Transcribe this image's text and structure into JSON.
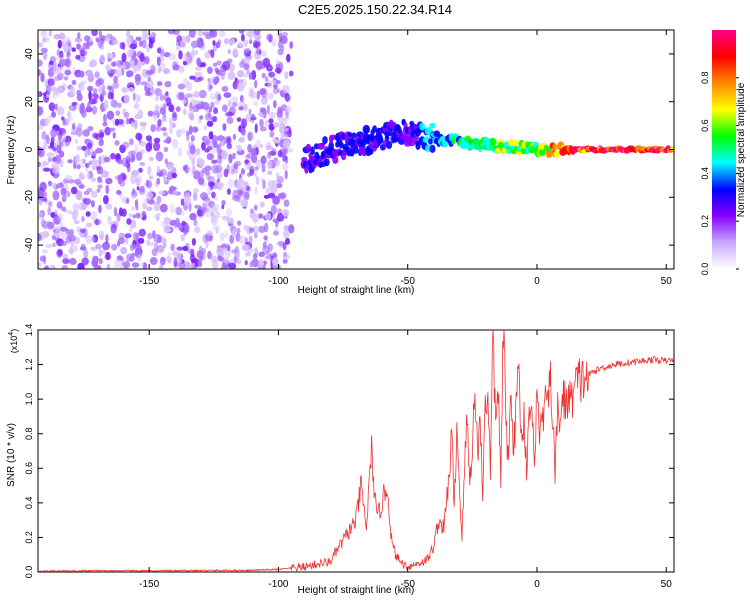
{
  "title": "C2E5.2025.150.22.34.R14",
  "chart_data": [
    {
      "type": "heatmap",
      "xlabel": "Height of straight line (km)",
      "ylabel": "Frequency (Hz)",
      "xlim": [
        -193,
        53
      ],
      "ylim": [
        -50,
        50
      ],
      "xticks": [
        -150,
        -100,
        -50,
        0,
        50
      ],
      "yticks": [
        -40,
        -20,
        0,
        20,
        40
      ],
      "colorbar": {
        "label": "Normalized spectral amplitude",
        "range": [
          0,
          1
        ],
        "ticks": [
          "0.0",
          "0.2",
          "0.4",
          "0.6",
          "0.8"
        ],
        "tick_values": [
          0.0,
          0.2,
          0.4,
          0.6,
          0.8
        ],
        "colors": [
          "#ffffff",
          "#c9a7ff",
          "#8800ff",
          "#0000ff",
          "#00ffff",
          "#00ff00",
          "#ffff00",
          "#ff8800",
          "#ff0000",
          "#ff0088"
        ]
      },
      "features": {
        "noise_region_x": [
          -193,
          -95
        ],
        "noise_amplitude": 0.15,
        "signal_track": [
          {
            "x": -90,
            "f": -5,
            "amp": 0.3
          },
          {
            "x": -80,
            "f": 0,
            "amp": 0.3
          },
          {
            "x": -70,
            "f": 3,
            "amp": 0.35
          },
          {
            "x": -60,
            "f": 5,
            "amp": 0.35
          },
          {
            "x": -50,
            "f": 7,
            "amp": 0.3
          },
          {
            "x": -40,
            "f": 5,
            "amp": 0.45
          },
          {
            "x": -30,
            "f": 3,
            "amp": 0.5
          },
          {
            "x": -20,
            "f": 2,
            "amp": 0.55
          },
          {
            "x": -10,
            "f": 1,
            "amp": 0.6
          },
          {
            "x": 0,
            "f": 0,
            "amp": 0.7
          },
          {
            "x": 15,
            "f": 0,
            "amp": 0.95
          },
          {
            "x": 53,
            "f": 0,
            "amp": 0.98
          }
        ]
      }
    },
    {
      "type": "line",
      "xlabel": "Height of straight line (km)",
      "ylabel": "SNR (10 * v/v)",
      "multiplier": "(x10",
      "multiplier_exp": "4",
      "multiplier_close": ")",
      "xlim": [
        -193,
        53
      ],
      "ylim": [
        0,
        1.4
      ],
      "xticks": [
        -150,
        -100,
        -50,
        0,
        50
      ],
      "yticks": [
        "0.0",
        "0.2",
        "0.4",
        "0.6",
        "0.8",
        "1.0",
        "1.2",
        "1.4"
      ],
      "ytick_values": [
        0.0,
        0.2,
        0.4,
        0.6,
        0.8,
        1.0,
        1.2,
        1.4
      ],
      "series": [
        {
          "color": "#ee3333",
          "x": [
            -193,
            -170,
            -150,
            -130,
            -110,
            -100,
            -90,
            -80,
            -75,
            -70,
            -68,
            -66,
            -64,
            -62,
            -60,
            -58,
            -56,
            -54,
            -52,
            -50,
            -48,
            -46,
            -44,
            -42,
            -40,
            -38,
            -36,
            -34,
            -33,
            -32,
            -31,
            -30,
            -29,
            -28,
            -27,
            -26,
            -25,
            -24,
            -23,
            -22,
            -21,
            -20,
            -19,
            -18,
            -17,
            -16,
            -15,
            -14,
            -13,
            -12,
            -11,
            -10,
            -9,
            -8,
            -7,
            -6,
            -5,
            -4,
            -3,
            -2,
            -1,
            0,
            1,
            2,
            3,
            4,
            5,
            6,
            7,
            8,
            9,
            10,
            11,
            12,
            13,
            14,
            15,
            16,
            18,
            20,
            22,
            25,
            30,
            35,
            40,
            45,
            50,
            53
          ],
          "y": [
            0.005,
            0.008,
            0.007,
            0.009,
            0.01,
            0.015,
            0.03,
            0.06,
            0.18,
            0.3,
            0.5,
            0.25,
            0.7,
            0.3,
            0.4,
            0.5,
            0.15,
            0.08,
            0.05,
            0.03,
            0.04,
            0.05,
            0.06,
            0.08,
            0.15,
            0.3,
            0.25,
            0.55,
            0.8,
            0.35,
            0.85,
            0.5,
            0.2,
            0.6,
            0.9,
            0.5,
            0.75,
            1.02,
            0.7,
            0.9,
            0.45,
            1.05,
            0.95,
            0.6,
            1.35,
            0.85,
            1.1,
            0.5,
            1.42,
            0.9,
            0.6,
            1.1,
            0.7,
            0.95,
            1.2,
            0.75,
            0.9,
            0.6,
            1.0,
            0.85,
            0.7,
            1.0,
            0.85,
            0.8,
            1.05,
            0.9,
            1.12,
            0.95,
            0.55,
            0.95,
            0.88,
            1.0,
            0.98,
            1.02,
            0.97,
            1.05,
            1.08,
            1.1,
            1.12,
            1.14,
            1.16,
            1.18,
            1.2,
            1.21,
            1.22,
            1.23,
            1.22,
            1.23
          ]
        }
      ]
    }
  ]
}
